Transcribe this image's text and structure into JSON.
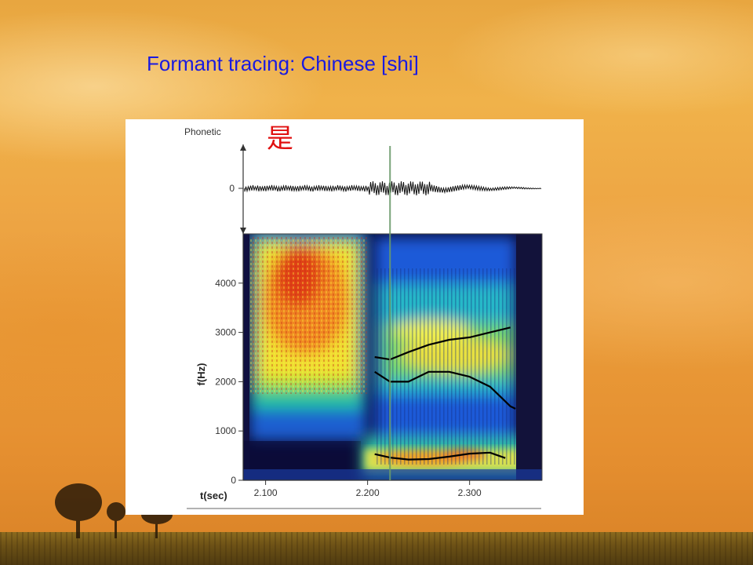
{
  "title": "Formant tracing: Chinese [shi]",
  "colors": {
    "title_color": "#1a1ae0",
    "character_color": "#e01010",
    "cursor_color": "#6a9a6a",
    "formant_trace_color": "#000000"
  },
  "chart_data": {
    "type": "heatmap",
    "subtype": "spectrogram with formant tracing",
    "title": "",
    "phonetic_tier": {
      "label": "Phonetic",
      "character": "是"
    },
    "waveform": {
      "zero_label": "0"
    },
    "xlabel": "t(sec)",
    "ylabel": "f(Hz)",
    "xlim": [
      2.078,
      2.371
    ],
    "ylim": [
      0,
      5000
    ],
    "x_ticks": [
      "2.100",
      "2.200",
      "2.300"
    ],
    "x_tick_values": [
      2.1,
      2.2,
      2.3
    ],
    "y_ticks": [
      "0",
      "1000",
      "2000",
      "3000",
      "4000"
    ],
    "y_tick_values": [
      0,
      1000,
      2000,
      3000,
      4000
    ],
    "cursor_time": 2.222,
    "formant_traces": [
      {
        "name": "",
        "points": [
          [
            2.207,
            530
          ],
          [
            2.222,
            460
          ],
          [
            2.24,
            420
          ],
          [
            2.26,
            430
          ],
          [
            2.28,
            480
          ],
          [
            2.3,
            540
          ],
          [
            2.32,
            560
          ],
          [
            2.335,
            450
          ]
        ]
      },
      {
        "name": "",
        "points": [
          [
            2.207,
            2200
          ],
          [
            2.222,
            2000
          ],
          [
            2.24,
            2000
          ],
          [
            2.26,
            2200
          ],
          [
            2.28,
            2200
          ],
          [
            2.3,
            2100
          ],
          [
            2.32,
            1900
          ],
          [
            2.33,
            1700
          ],
          [
            2.34,
            1500
          ],
          [
            2.345,
            1450
          ]
        ]
      },
      {
        "name": "",
        "points": [
          [
            2.207,
            2500
          ],
          [
            2.222,
            2450
          ],
          [
            2.24,
            2600
          ],
          [
            2.26,
            2750
          ],
          [
            2.28,
            2850
          ],
          [
            2.3,
            2900
          ],
          [
            2.32,
            3000
          ],
          [
            2.34,
            3100
          ]
        ]
      }
    ],
    "grid": false,
    "legend": "none"
  }
}
